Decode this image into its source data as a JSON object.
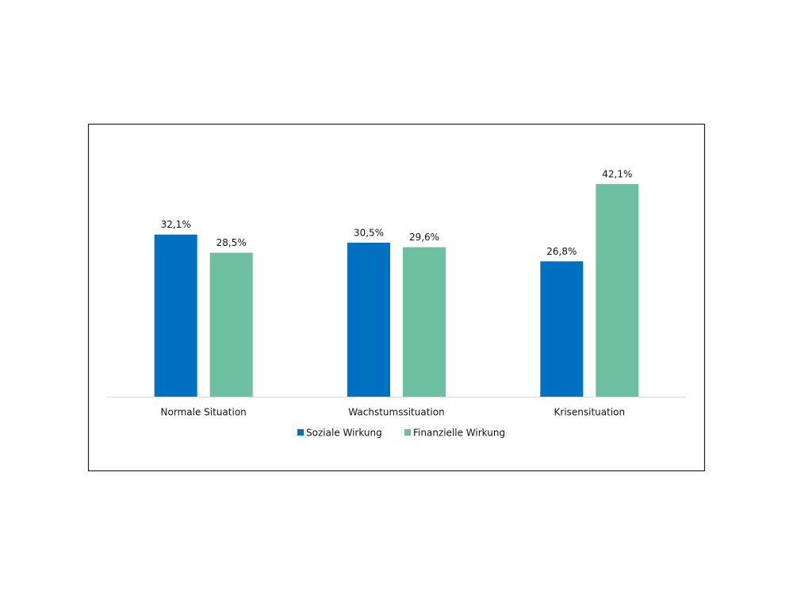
{
  "chart_data": {
    "type": "bar",
    "categories": [
      "Normale Situation",
      "Wachstumssituation",
      "Krisensituation"
    ],
    "series": [
      {
        "name": "Soziale Wirkung",
        "color": "#0070c0",
        "values": [
          32.1,
          30.5,
          26.8
        ],
        "value_labels": [
          "32,1%",
          "30,5%",
          "26,8%"
        ]
      },
      {
        "name": "Finanzielle Wirkung",
        "color": "#6cbfa1",
        "values": [
          28.5,
          29.6,
          42.1
        ],
        "value_labels": [
          "28,5%",
          "29,6%",
          "42,1%"
        ]
      }
    ]
  }
}
